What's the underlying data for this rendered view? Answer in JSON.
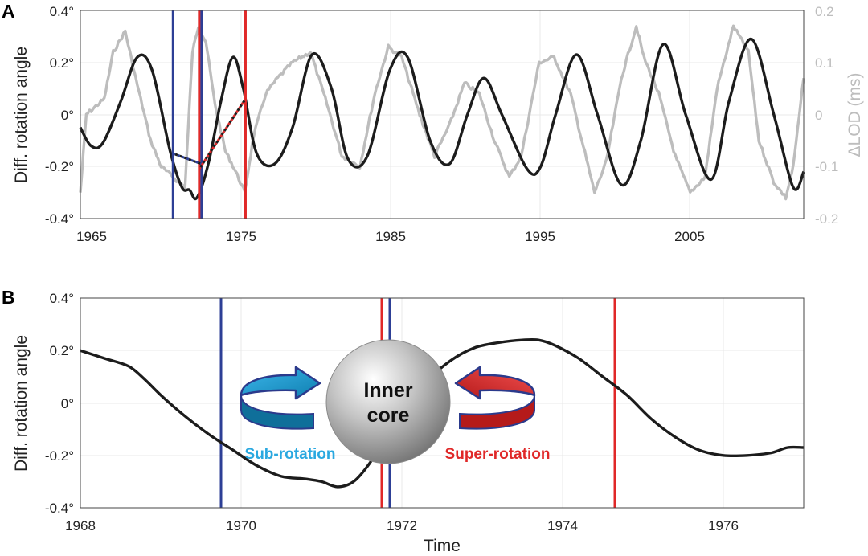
{
  "panel_a": {
    "letter": "A",
    "ylabel": "Diff. rotation angle",
    "ylabel_right": "ΔLOD (ms)",
    "y_ticks": [
      "0.4°",
      "0.2°",
      "0°",
      "-0.2°",
      "-0.4°"
    ],
    "y_ticks_right": [
      "0.2",
      "0.1",
      "0",
      "-0.1",
      "-0.2"
    ],
    "x_ticks": [
      "1965",
      "1975",
      "1985",
      "1995",
      "2005"
    ]
  },
  "panel_b": {
    "letter": "B",
    "ylabel": "Diff. rotation angle",
    "xlabel": "Time",
    "y_ticks": [
      "0.4°",
      "0.2°",
      "0°",
      "-0.2°",
      "-0.4°"
    ],
    "x_ticks": [
      "1968",
      "1970",
      "1972",
      "1974",
      "1976"
    ],
    "inset": {
      "core_label_line1": "Inner",
      "core_label_line2": "core",
      "sub_label": "Sub-rotation",
      "super_label": "Super-rotation"
    }
  },
  "colors": {
    "angle": "#1c1c1c",
    "lod": "#bdbdbd",
    "blue_marker": "#2d3f96",
    "red_marker": "#e02828",
    "sub_arrow": "#29a8e0",
    "super_arrow": "#e02828"
  },
  "chart_data": [
    {
      "type": "line",
      "xlim": [
        1963.8,
        2012.2
      ],
      "ylim": [
        -0.4,
        0.4
      ],
      "ylim_right": [
        -0.2,
        0.2
      ],
      "grid": true,
      "series": [
        {
          "axis": "left",
          "x": [
            1963.8,
            1964.5,
            1965.3,
            1966.5,
            1967.6,
            1968.6,
            1969.8,
            1970.6,
            1971.1,
            1971.6,
            1972.4,
            1973.2,
            1974.0,
            1974.7,
            1975.6,
            1976.8,
            1978.0,
            1979.3,
            1980.6,
            1981.7,
            1983.0,
            1984.5,
            1985.7,
            1987.2,
            1988.5,
            1989.7,
            1990.8,
            1992.0,
            1993.7,
            1994.6,
            1995.6,
            1997.0,
            1998.4,
            2000.0,
            2001.3,
            2002.8,
            2004.3,
            2006.0,
            2007.2,
            2008.7,
            2010.2,
            2011.5,
            2012.2
          ],
          "y": [
            -0.05,
            -0.12,
            -0.11,
            0.05,
            0.22,
            0.17,
            -0.14,
            -0.28,
            -0.29,
            -0.32,
            -0.18,
            0.05,
            0.22,
            0.1,
            -0.15,
            -0.19,
            -0.05,
            0.23,
            0.1,
            -0.17,
            -0.16,
            0.17,
            0.22,
            -0.1,
            -0.19,
            0.0,
            0.14,
            0.0,
            -0.21,
            -0.2,
            0.0,
            0.23,
            0.0,
            -0.27,
            -0.1,
            0.27,
            0.0,
            -0.25,
            0.05,
            0.29,
            0.0,
            -0.28,
            -0.22
          ]
        },
        {
          "axis": "right",
          "x": [
            1963.8,
            1964.2,
            1965.4,
            1966.0,
            1966.8,
            1967.5,
            1968.5,
            1969.2,
            1970.0,
            1970.8,
            1971.3,
            1971.7,
            1972.2,
            1972.8,
            1973.5,
            1974.2,
            1974.8,
            1975.4,
            1976.2,
            1977.0,
            1978.0,
            1979.2,
            1980.3,
            1981.3,
            1982.5,
            1983.5,
            1984.4,
            1985.3,
            1986.5,
            1987.5,
            1988.5,
            1989.5,
            1990.5,
            1991.5,
            1992.5,
            1993.3,
            1994.5,
            1995.5,
            1996.6,
            1998.2,
            1999.0,
            2000.0,
            2001.0,
            2001.5,
            2002.5,
            2003.6,
            2004.6,
            2005.6,
            2006.4,
            2007.5,
            2008.5,
            2009.2,
            2010.2,
            2011.0,
            2011.5,
            2012.2
          ],
          "y": [
            -0.15,
            0.0,
            0.03,
            0.12,
            0.16,
            0.07,
            -0.05,
            -0.1,
            -0.12,
            -0.14,
            0.12,
            0.17,
            0.14,
            0.02,
            -0.07,
            -0.11,
            -0.15,
            -0.04,
            0.04,
            0.07,
            0.1,
            0.12,
            0.02,
            -0.08,
            -0.1,
            0.04,
            0.13,
            0.11,
            0.0,
            -0.08,
            -0.02,
            0.06,
            0.04,
            -0.05,
            -0.12,
            -0.08,
            0.1,
            0.11,
            0.04,
            -0.15,
            -0.09,
            0.07,
            0.17,
            0.11,
            0.04,
            -0.08,
            -0.15,
            -0.12,
            0.05,
            0.17,
            0.12,
            -0.05,
            -0.13,
            -0.16,
            -0.1,
            0.07
          ]
        }
      ],
      "markers": [
        {
          "x": 1970.0,
          "color": "blue"
        },
        {
          "x": 1971.9,
          "color": "blue"
        },
        {
          "x": 1971.75,
          "color": "red"
        },
        {
          "x": 1974.85,
          "color": "red"
        }
      ],
      "dotted_links": [
        {
          "x": [
            1970.0,
            1971.9
          ],
          "y": [
            -0.15,
            -0.19
          ],
          "colors": [
            "blue",
            "black"
          ]
        },
        {
          "x": [
            1971.75,
            1974.85
          ],
          "y": [
            -0.21,
            0.06
          ],
          "colors": [
            "red",
            "black"
          ]
        }
      ]
    },
    {
      "type": "line",
      "xlabel": "Time",
      "xlim": [
        1968,
        1977
      ],
      "ylim": [
        -0.4,
        0.4
      ],
      "grid": true,
      "series": [
        {
          "x": [
            1968.0,
            1968.3,
            1968.6,
            1968.8,
            1969.0,
            1969.3,
            1969.6,
            1969.9,
            1970.2,
            1970.5,
            1970.8,
            1971.0,
            1971.2,
            1971.4,
            1971.6,
            1971.8,
            1972.0,
            1972.3,
            1972.6,
            1972.9,
            1973.2,
            1973.5,
            1973.7,
            1973.9,
            1974.2,
            1974.5,
            1974.8,
            1975.1,
            1975.4,
            1975.7,
            1976.0,
            1976.3,
            1976.6,
            1976.8,
            1977.0
          ],
          "y": [
            0.2,
            0.17,
            0.14,
            0.09,
            0.03,
            -0.05,
            -0.12,
            -0.18,
            -0.24,
            -0.28,
            -0.29,
            -0.3,
            -0.32,
            -0.3,
            -0.23,
            -0.13,
            -0.03,
            0.08,
            0.16,
            0.21,
            0.23,
            0.24,
            0.24,
            0.22,
            0.17,
            0.1,
            0.03,
            -0.06,
            -0.13,
            -0.18,
            -0.2,
            -0.2,
            -0.19,
            -0.17,
            -0.17
          ]
        }
      ],
      "markers": [
        {
          "x": 1969.75,
          "color": "blue"
        },
        {
          "x": 1971.85,
          "color": "blue"
        },
        {
          "x": 1971.75,
          "color": "red"
        },
        {
          "x": 1974.65,
          "color": "red"
        }
      ]
    }
  ]
}
